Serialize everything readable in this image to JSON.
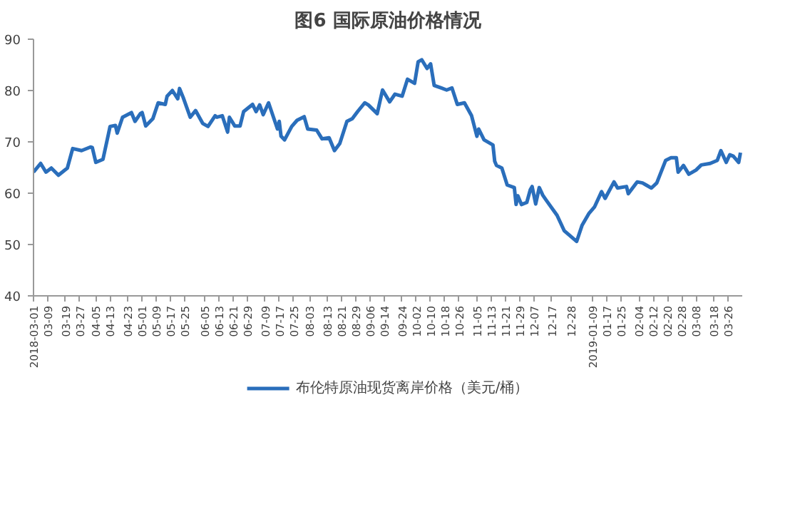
{
  "chart_data": {
    "type": "line",
    "title": "图6 国际原油价格情况",
    "x": [
      "2018-03-01",
      "2018-03-05",
      "2018-03-08",
      "2018-03-11",
      "2018-03-15",
      "2018-03-20",
      "2018-03-23",
      "2018-03-28",
      "2018-04-02",
      "2018-04-03",
      "2018-04-05",
      "2018-04-09",
      "2018-04-12",
      "2018-04-13",
      "2018-04-16",
      "2018-04-17",
      "2018-04-20",
      "2018-04-25",
      "2018-04-27",
      "2018-04-30",
      "2018-05-01",
      "2018-05-03",
      "2018-05-07",
      "2018-05-10",
      "2018-05-14",
      "2018-05-15",
      "2018-05-18",
      "2018-05-21",
      "2018-05-22",
      "2018-05-24",
      "2018-05-28",
      "2018-05-31",
      "2018-06-04",
      "2018-06-07",
      "2018-06-11",
      "2018-06-12",
      "2018-06-15",
      "2018-06-18",
      "2018-06-19",
      "2018-06-22",
      "2018-06-25",
      "2018-06-27",
      "2018-07-02",
      "2018-07-04",
      "2018-07-06",
      "2018-07-08",
      "2018-07-11",
      "2018-07-16",
      "2018-07-17",
      "2018-07-18",
      "2018-07-20",
      "2018-07-24",
      "2018-07-27",
      "2018-07-31",
      "2018-08-02",
      "2018-08-07",
      "2018-08-10",
      "2018-08-14",
      "2018-08-17",
      "2018-08-20",
      "2018-08-24",
      "2018-08-27",
      "2018-08-30",
      "2018-09-03",
      "2018-09-05",
      "2018-09-10",
      "2018-09-13",
      "2018-09-17",
      "2018-09-20",
      "2018-09-24",
      "2018-09-27",
      "2018-10-01",
      "2018-10-03",
      "2018-10-05",
      "2018-10-08",
      "2018-10-10",
      "2018-10-12",
      "2018-10-16",
      "2018-10-19",
      "2018-10-22",
      "2018-10-25",
      "2018-10-29",
      "2018-11-02",
      "2018-11-05",
      "2018-11-06",
      "2018-11-09",
      "2018-11-14",
      "2018-11-15",
      "2018-11-16",
      "2018-11-19",
      "2018-11-22",
      "2018-11-26",
      "2018-11-27",
      "2018-11-28",
      "2018-11-30",
      "2018-12-03",
      "2018-12-05",
      "2018-12-06",
      "2018-12-08",
      "2018-12-10",
      "2018-12-12",
      "2018-12-14",
      "2018-12-20",
      "2018-12-24",
      "2018-12-31",
      "2019-01-03",
      "2019-01-07",
      "2019-01-10",
      "2019-01-14",
      "2019-01-16",
      "2019-01-21",
      "2019-01-23",
      "2019-01-28",
      "2019-01-29",
      "2019-02-03",
      "2019-02-06",
      "2019-02-08",
      "2019-02-11",
      "2019-02-14",
      "2019-02-19",
      "2019-02-22",
      "2019-02-25",
      "2019-02-26",
      "2019-03-01",
      "2019-03-04",
      "2019-03-08",
      "2019-03-11",
      "2019-03-16",
      "2019-03-20",
      "2019-03-22",
      "2019-03-25",
      "2019-03-27",
      "2019-03-29",
      "2019-04-01",
      "2019-04-02"
    ],
    "series": [
      {
        "name": "布伦特原油现货离岸价格（美元/桶）",
        "color": "#2a6ebb",
        "values": [
          64.1,
          65.8,
          64.1,
          64.9,
          63.5,
          64.9,
          68.7,
          68.3,
          69.0,
          68.9,
          66.0,
          66.6,
          71.4,
          73.0,
          73.2,
          71.7,
          74.8,
          75.7,
          74.0,
          75.5,
          75.7,
          73.1,
          74.5,
          77.6,
          77.3,
          78.9,
          80.0,
          78.4,
          80.4,
          78.7,
          74.8,
          76.1,
          73.6,
          73.0,
          75.1,
          74.8,
          75.1,
          71.9,
          74.8,
          73.1,
          73.1,
          75.9,
          77.3,
          75.9,
          77.2,
          75.3,
          77.6,
          72.5,
          74.0,
          71.1,
          70.4,
          73.0,
          74.2,
          74.9,
          72.5,
          72.3,
          70.6,
          70.8,
          68.3,
          69.7,
          74.0,
          74.5,
          75.9,
          77.6,
          77.2,
          75.5,
          80.1,
          77.8,
          79.3,
          78.9,
          82.2,
          81.4,
          85.6,
          86.0,
          84.3,
          85.2,
          81.0,
          80.5,
          80.1,
          80.5,
          77.3,
          77.6,
          75.1,
          71.1,
          72.5,
          70.4,
          69.4,
          66.2,
          65.4,
          64.9,
          61.6,
          61.1,
          57.8,
          59.5,
          57.8,
          58.2,
          60.7,
          61.3,
          57.9,
          61.1,
          59.6,
          58.6,
          55.7,
          52.7,
          50.6,
          53.7,
          56.1,
          57.3,
          60.3,
          59.0,
          62.2,
          61.0,
          61.3,
          59.9,
          62.2,
          62.0,
          61.6,
          61.0,
          62.0,
          66.4,
          66.9,
          66.9,
          64.1,
          65.4,
          63.7,
          64.5,
          65.5,
          65.8,
          66.4,
          68.3,
          66.0,
          67.5,
          67.2,
          66.0,
          67.9
        ]
      }
    ],
    "xlim": [
      "2018-03-01",
      "2019-04-03"
    ],
    "xticks": [
      {
        "value": "2018-03-01",
        "label": "2018-03-01"
      },
      {
        "value": "2018-03-09",
        "label": "03-09"
      },
      {
        "value": "2018-03-19",
        "label": "03-19"
      },
      {
        "value": "2018-03-27",
        "label": "03-27"
      },
      {
        "value": "2018-04-05",
        "label": "04-05"
      },
      {
        "value": "2018-04-13",
        "label": "04-13"
      },
      {
        "value": "2018-04-23",
        "label": "04-23"
      },
      {
        "value": "2018-05-01",
        "label": "05-01"
      },
      {
        "value": "2018-05-09",
        "label": "05-09"
      },
      {
        "value": "2018-05-17",
        "label": "05-17"
      },
      {
        "value": "2018-05-25",
        "label": "05-25"
      },
      {
        "value": "2018-06-05",
        "label": "06-05"
      },
      {
        "value": "2018-06-13",
        "label": "06-13"
      },
      {
        "value": "2018-06-21",
        "label": "06-21"
      },
      {
        "value": "2018-06-29",
        "label": "06-29"
      },
      {
        "value": "2018-07-09",
        "label": "07-09"
      },
      {
        "value": "2018-07-17",
        "label": "07-17"
      },
      {
        "value": "2018-07-25",
        "label": "07-25"
      },
      {
        "value": "2018-08-03",
        "label": "08-03"
      },
      {
        "value": "2018-08-13",
        "label": "08-13"
      },
      {
        "value": "2018-08-21",
        "label": "08-21"
      },
      {
        "value": "2018-08-29",
        "label": "08-29"
      },
      {
        "value": "2018-09-06",
        "label": "09-06"
      },
      {
        "value": "2018-09-14",
        "label": "09-14"
      },
      {
        "value": "2018-09-24",
        "label": "09-24"
      },
      {
        "value": "2018-10-02",
        "label": "10-02"
      },
      {
        "value": "2018-10-10",
        "label": "10-10"
      },
      {
        "value": "2018-10-18",
        "label": "10-18"
      },
      {
        "value": "2018-10-26",
        "label": "10-26"
      },
      {
        "value": "2018-11-05",
        "label": "11-05"
      },
      {
        "value": "2018-11-13",
        "label": "11-13"
      },
      {
        "value": "2018-11-21",
        "label": "11-21"
      },
      {
        "value": "2018-11-29",
        "label": "11-29"
      },
      {
        "value": "2018-12-07",
        "label": "12-07"
      },
      {
        "value": "2018-12-17",
        "label": "12-17"
      },
      {
        "value": "2018-12-28",
        "label": "12-28"
      },
      {
        "value": "2019-01-09",
        "label": "2019-01-09"
      },
      {
        "value": "2019-01-17",
        "label": "01-17"
      },
      {
        "value": "2019-01-25",
        "label": "01-25"
      },
      {
        "value": "2019-02-04",
        "label": "02-04"
      },
      {
        "value": "2019-02-12",
        "label": "02-12"
      },
      {
        "value": "2019-02-20",
        "label": "02-20"
      },
      {
        "value": "2019-02-28",
        "label": "02-28"
      },
      {
        "value": "2019-03-08",
        "label": "03-08"
      },
      {
        "value": "2019-03-18",
        "label": "03-18"
      },
      {
        "value": "2019-03-26",
        "label": "03-26"
      }
    ],
    "ylim": [
      40,
      90
    ],
    "yticks": [
      40,
      50,
      60,
      70,
      80,
      90
    ],
    "grid": false,
    "legend": "bottom",
    "marker": "none",
    "line_style": "solid"
  }
}
